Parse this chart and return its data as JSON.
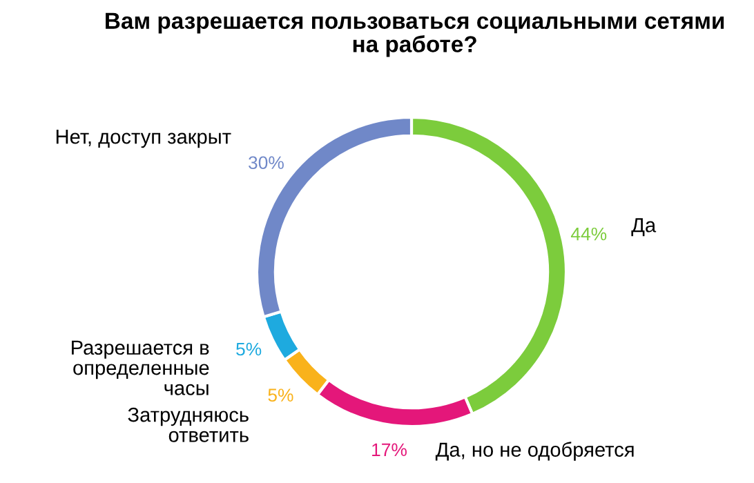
{
  "chart_data": {
    "type": "donut",
    "title": "Вам разрешается пользоваться социальными сетями\nна работе?",
    "categories": [
      "Да",
      "Да, но не одобряется",
      "Затрудняюсь\nответить",
      "Разрешается в\nопределенные\nчасы",
      "Нет, доступ закрыт"
    ],
    "values": [
      44,
      17,
      5,
      5,
      30
    ],
    "value_labels": [
      "44%",
      "17%",
      "5%",
      "5%",
      "30%"
    ],
    "colors": [
      "#7ccc3c",
      "#e4177a",
      "#f9b21b",
      "#1eaadf",
      "#7088c8"
    ],
    "legend": false
  }
}
